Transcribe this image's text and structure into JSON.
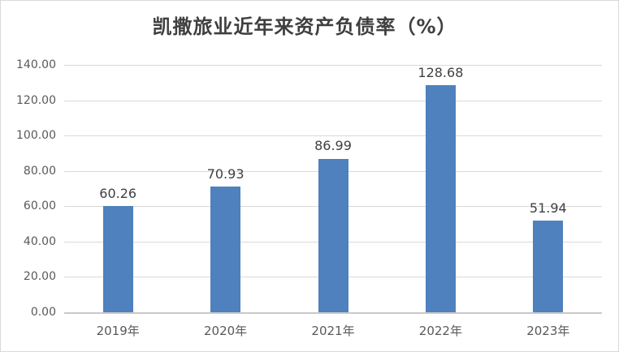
{
  "chart": {
    "title": "凯撒旅业近年来资产负债率（%）"
  },
  "chart_data": {
    "type": "bar",
    "title": "凯撒旅业近年来资产负债率（%）",
    "categories": [
      "2019年",
      "2020年",
      "2021年",
      "2022年",
      "2023年"
    ],
    "values": [
      60.26,
      70.93,
      86.99,
      128.68,
      51.94
    ],
    "data_labels": [
      "60.26",
      "70.93",
      "86.99",
      "128.68",
      "51.94"
    ],
    "xlabel": "",
    "ylabel": "",
    "ylim": [
      0,
      140
    ],
    "ytick_step": 20,
    "ytick_labels": [
      "0.00",
      "20.00",
      "40.00",
      "60.00",
      "80.00",
      "100.00",
      "120.00",
      "140.00"
    ],
    "grid": true,
    "legend_position": "none",
    "colors": {
      "bar": "#4e81bd",
      "gridline": "#d9d9d9",
      "axis_line": "#c9c9c9",
      "title_text": "#3f3f3f",
      "data_label_text": "#404040",
      "tick_text": "#595959",
      "chart_border": "#d9d9d9",
      "background": "#ffffff"
    }
  }
}
